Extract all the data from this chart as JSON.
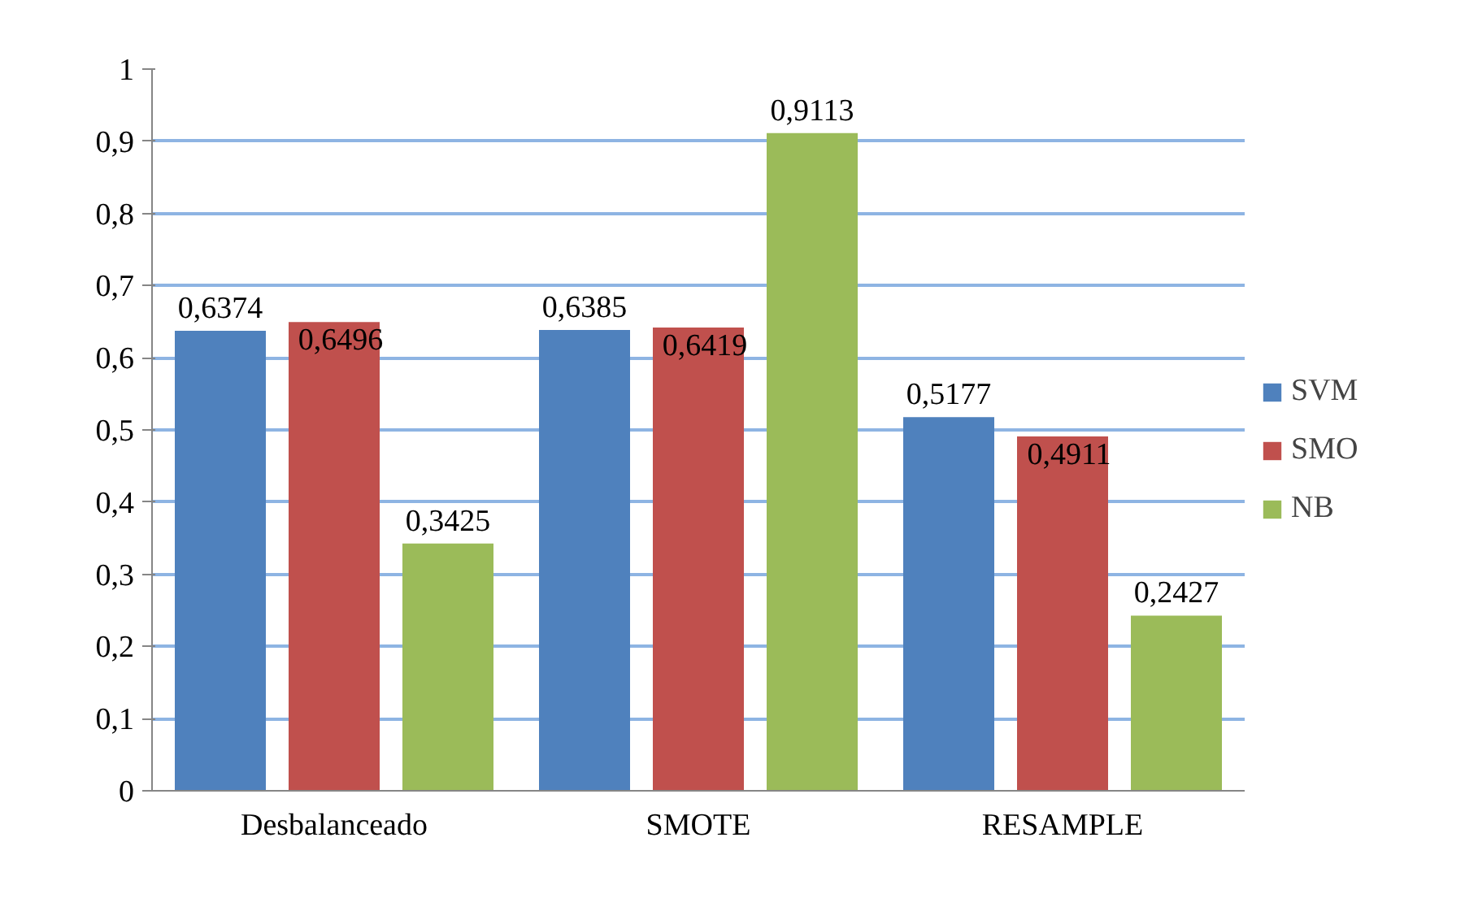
{
  "chart_data": {
    "type": "bar",
    "categories": [
      "Desbalanceado",
      "SMOTE",
      "RESAMPLE"
    ],
    "series": [
      {
        "name": "SVM",
        "color": "#4f81bd",
        "values": [
          0.6374,
          0.6385,
          0.5177
        ],
        "value_labels": [
          "0,6374",
          "0,6385",
          "0,5177"
        ]
      },
      {
        "name": "SMO",
        "color": "#c0504d",
        "values": [
          0.6496,
          0.6419,
          0.4911
        ],
        "value_labels": [
          "0,6496",
          "0,6419",
          "0,4911"
        ]
      },
      {
        "name": "NB",
        "color": "#9bbb59",
        "values": [
          0.3425,
          0.9113,
          0.2427
        ],
        "value_labels": [
          "0,3425",
          "0,9113",
          "0,2427"
        ]
      }
    ],
    "ylim": [
      0,
      1
    ],
    "yticks": [
      0,
      {
        "value": 0.1,
        "label": "0,1"
      },
      {
        "value": 0.2,
        "label": "0,2"
      },
      {
        "value": 0.3,
        "label": "0,3"
      },
      {
        "value": 0.4,
        "label": "0,4"
      },
      {
        "value": 0.5,
        "label": "0,5"
      },
      {
        "value": 0.6,
        "label": "0,6"
      },
      {
        "value": 0.7,
        "label": "0,7"
      },
      {
        "value": 0.8,
        "label": "0,8"
      },
      {
        "value": 0.9,
        "label": "0,9"
      },
      1
    ],
    "grid": "y",
    "legend": "right"
  }
}
